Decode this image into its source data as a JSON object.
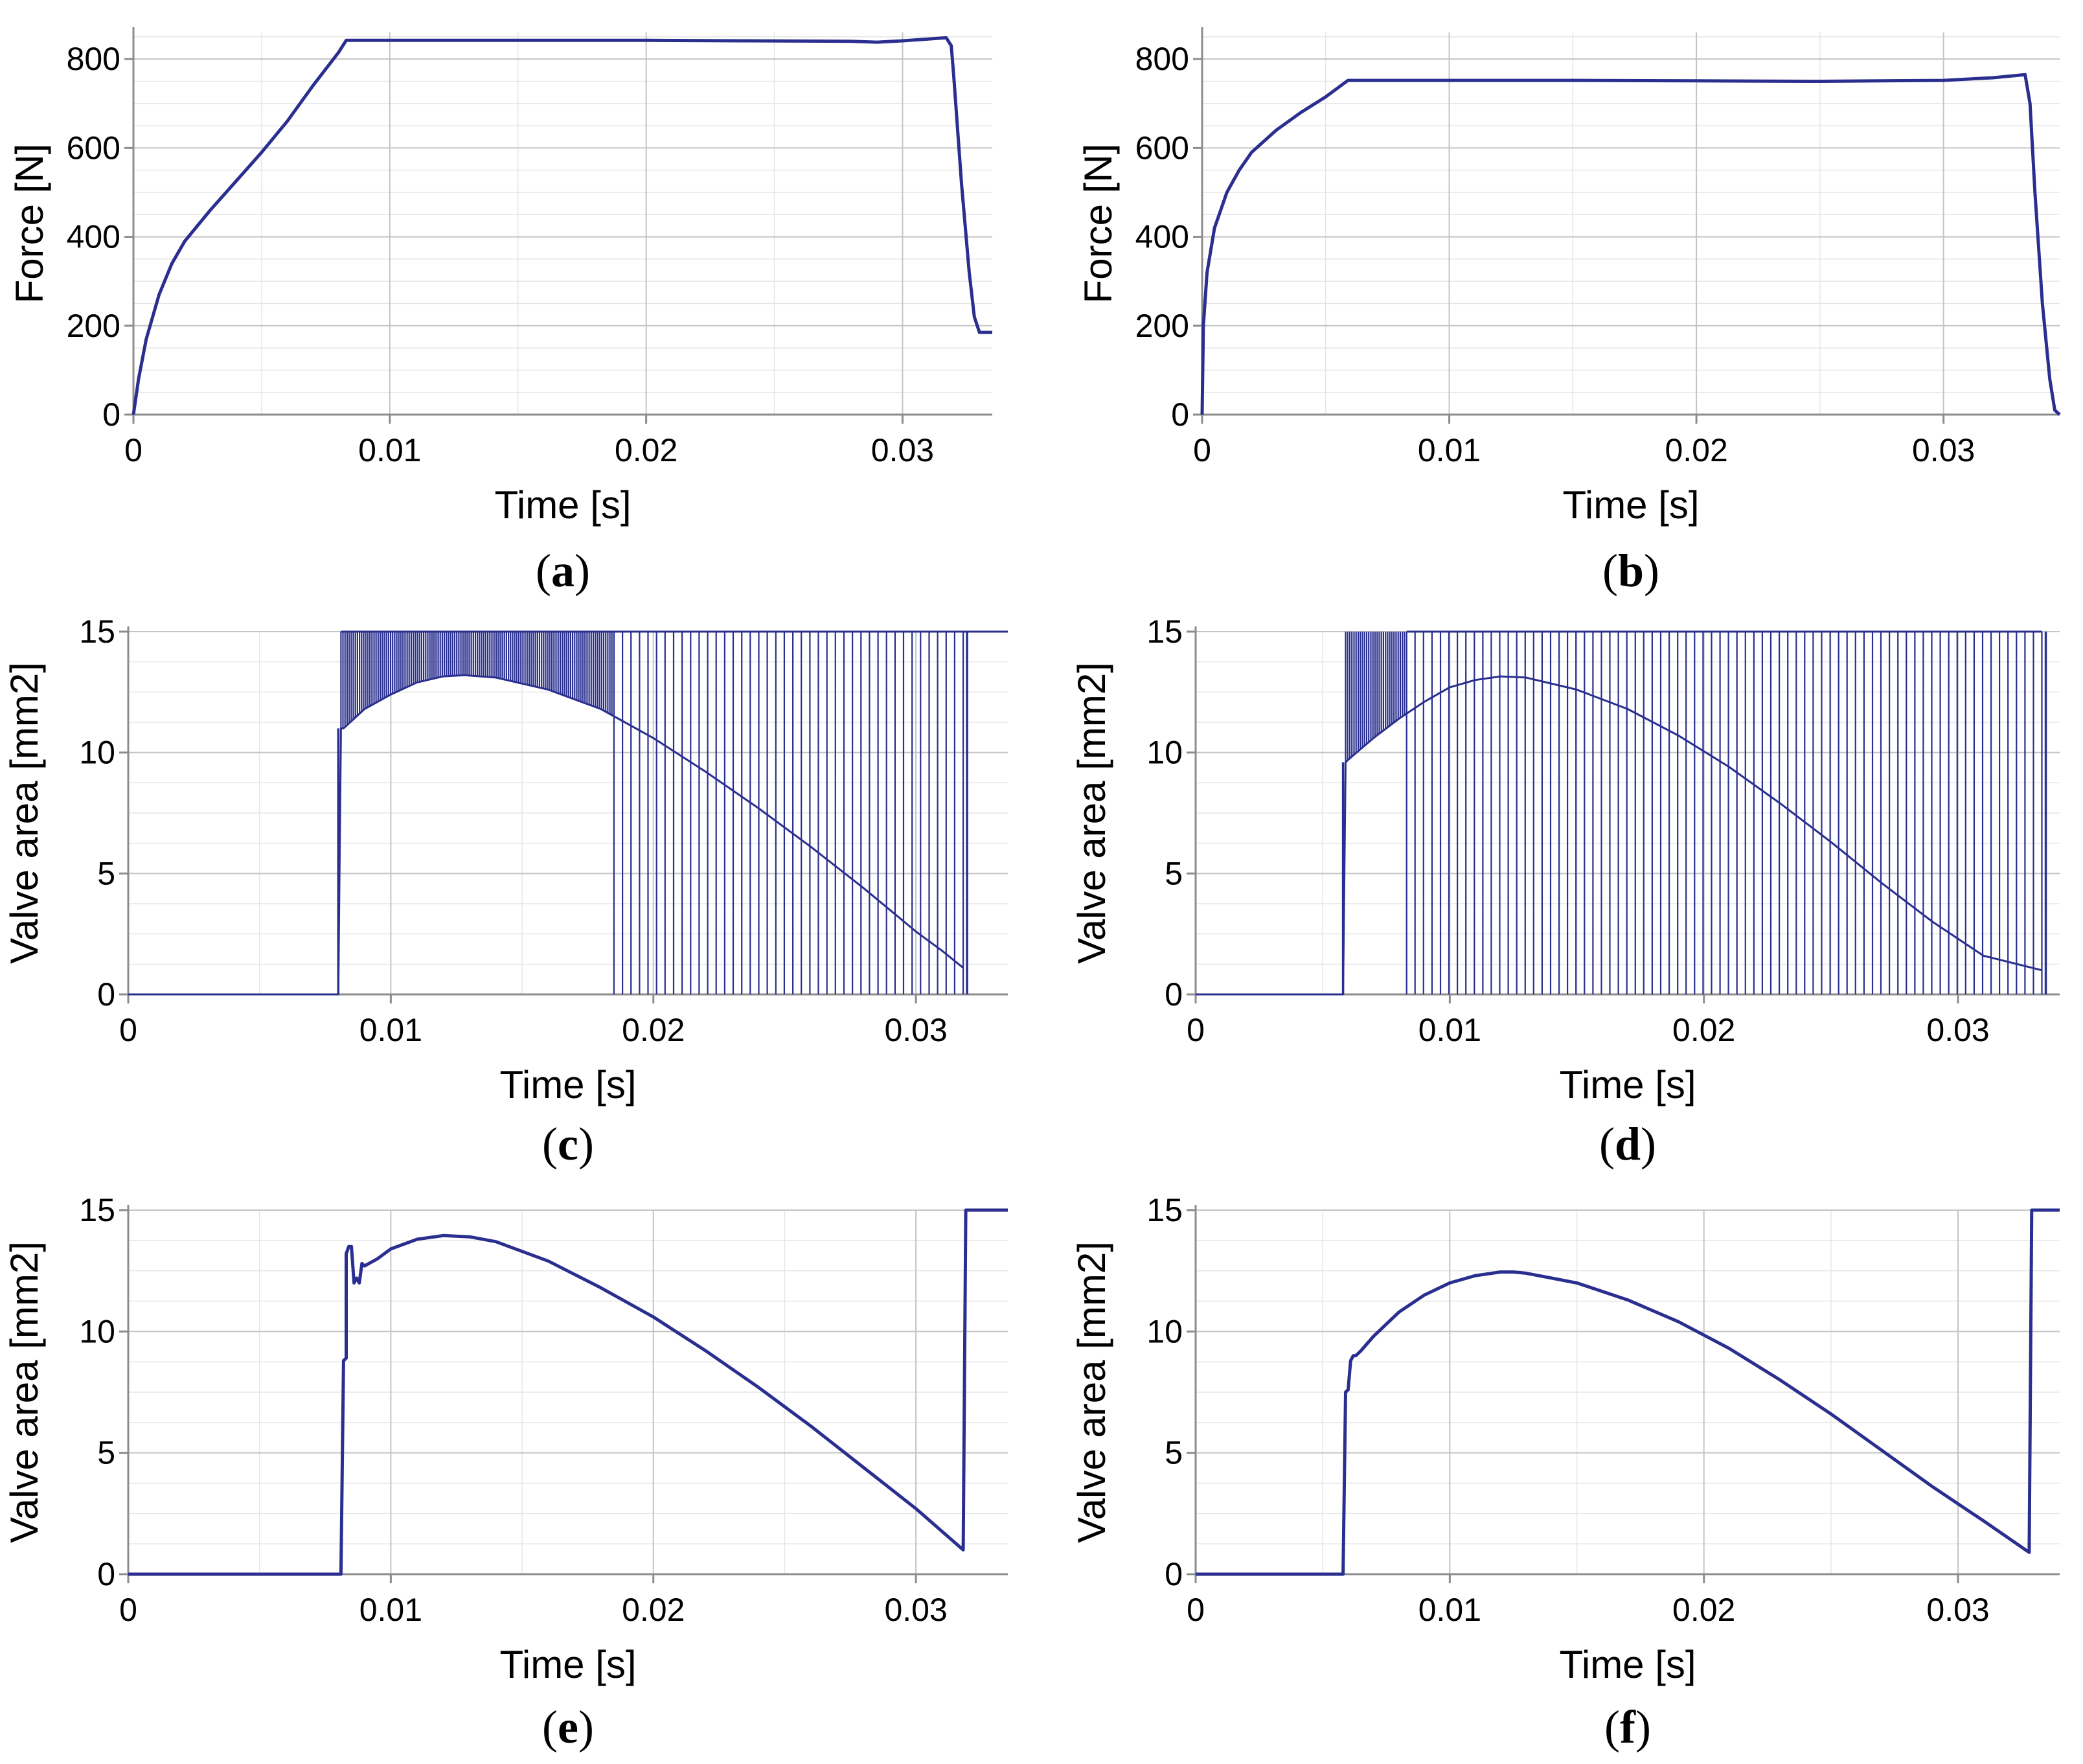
{
  "chart_data": [
    {
      "type": "line",
      "panel": "(a)",
      "panel_letter": "a",
      "xlabel": "Time [s]",
      "ylabel": "Force [N]",
      "xlim": [
        0,
        0.0335
      ],
      "ylim": [
        0,
        860
      ],
      "xticks": [
        0,
        0.01,
        0.02,
        0.03
      ],
      "xtick_labels": [
        "0",
        "0.01",
        "0.02",
        "0.03"
      ],
      "yticks": [
        0,
        200,
        400,
        600,
        800
      ],
      "ytick_labels": [
        "0",
        "200",
        "400",
        "600",
        "800"
      ],
      "grid": true,
      "series": [
        {
          "name": "Force",
          "color": "#2a2f8f",
          "x": [
            0,
            0.0002,
            0.0005,
            0.001,
            0.0015,
            0.002,
            0.003,
            0.004,
            0.005,
            0.006,
            0.007,
            0.008,
            0.0083,
            0.012,
            0.016,
            0.02,
            0.024,
            0.028,
            0.029,
            0.03,
            0.031,
            0.0317,
            0.0319,
            0.032,
            0.0323,
            0.0326,
            0.0328,
            0.033,
            0.0335
          ],
          "y": [
            0,
            80,
            170,
            270,
            340,
            390,
            460,
            525,
            590,
            660,
            740,
            815,
            842,
            842,
            842,
            842,
            841,
            840,
            838,
            841,
            845,
            848,
            830,
            760,
            520,
            320,
            220,
            185,
            185
          ]
        }
      ]
    },
    {
      "type": "line",
      "panel": "(b)",
      "panel_letter": "b",
      "xlabel": "Time [s]",
      "ylabel": "Force [N]",
      "xlim": [
        0,
        0.0347
      ],
      "ylim": [
        0,
        860
      ],
      "xticks": [
        0,
        0.01,
        0.02,
        0.03
      ],
      "xtick_labels": [
        "0",
        "0.01",
        "0.02",
        "0.03"
      ],
      "yticks": [
        0,
        200,
        400,
        600,
        800
      ],
      "ytick_labels": [
        "0",
        "200",
        "400",
        "600",
        "800"
      ],
      "grid": true,
      "series": [
        {
          "name": "Force",
          "color": "#2a2f8f",
          "x": [
            0,
            5e-05,
            0.0002,
            0.0005,
            0.001,
            0.0015,
            0.002,
            0.003,
            0.004,
            0.005,
            0.0059,
            0.01,
            0.015,
            0.02,
            0.025,
            0.03,
            0.032,
            0.0333,
            0.0335,
            0.0337,
            0.034,
            0.0343,
            0.0345,
            0.0347
          ],
          "y": [
            0,
            200,
            320,
            420,
            500,
            550,
            590,
            640,
            680,
            715,
            752,
            752,
            752,
            751,
            750,
            752,
            758,
            765,
            700,
            500,
            250,
            80,
            10,
            0
          ]
        }
      ]
    },
    {
      "type": "line",
      "panel": "(c)",
      "panel_letter": "c",
      "xlabel": "Time [s]",
      "ylabel": "Valve area [mm2]",
      "xlim": [
        0,
        0.0335
      ],
      "ylim": [
        0,
        15
      ],
      "xticks": [
        0,
        0.01,
        0.02,
        0.03
      ],
      "xtick_labels": [
        "0",
        "0.01",
        "0.02",
        "0.03"
      ],
      "yticks": [
        0,
        5,
        10,
        15
      ],
      "ytick_labels": [
        "0",
        "5",
        "10",
        "15"
      ],
      "grid": true,
      "series": [
        {
          "name": "Valve area (lower envelope)",
          "color": "#2a2f8f",
          "x": [
            0,
            0.008,
            0.0081,
            0.0082,
            0.0085,
            0.009,
            0.01,
            0.011,
            0.012,
            0.0128,
            0.014,
            0.016,
            0.018,
            0.02,
            0.022,
            0.024,
            0.026,
            0.028,
            0.03,
            0.031,
            0.0318
          ],
          "y": [
            0,
            0,
            11,
            11,
            11.3,
            11.8,
            12.4,
            12.9,
            13.15,
            13.2,
            13.1,
            12.6,
            11.8,
            10.6,
            9.2,
            7.7,
            6.1,
            4.4,
            2.6,
            1.8,
            1.1
          ]
        },
        {
          "name": "Valve area (upper envelope)",
          "color": "#2a2f8f",
          "x": [
            0.0081,
            0.0335
          ],
          "y": [
            15,
            15
          ]
        }
      ],
      "oscillation": {
        "dense_start": 0.0081,
        "dense_end": 0.0185,
        "sparse_start": 0.0185,
        "sparse_end": 0.0318,
        "final_value": 15
      }
    },
    {
      "type": "line",
      "panel": "(d)",
      "panel_letter": "d",
      "xlabel": "Time [s]",
      "ylabel": "Valve area [mm2]",
      "xlim": [
        0,
        0.034
      ],
      "ylim": [
        0,
        15
      ],
      "xticks": [
        0,
        0.01,
        0.02,
        0.03
      ],
      "xtick_labels": [
        "0",
        "0.01",
        "0.02",
        "0.03"
      ],
      "yticks": [
        0,
        5,
        10,
        15
      ],
      "ytick_labels": [
        "0",
        "5",
        "10",
        "15"
      ],
      "grid": true,
      "series": [
        {
          "name": "Valve area (lower envelope)",
          "color": "#2a2f8f",
          "x": [
            0,
            0.0058,
            0.0059,
            0.006,
            0.007,
            0.008,
            0.009,
            0.01,
            0.011,
            0.012,
            0.013,
            0.015,
            0.017,
            0.019,
            0.021,
            0.023,
            0.025,
            0.027,
            0.029,
            0.031,
            0.0333
          ],
          "y": [
            0,
            0,
            9.6,
            9.7,
            10.6,
            11.4,
            12.1,
            12.7,
            13.0,
            13.15,
            13.1,
            12.6,
            11.8,
            10.7,
            9.4,
            7.9,
            6.3,
            4.6,
            3.0,
            1.6,
            1.0
          ]
        },
        {
          "name": "Valve area (upper envelope)",
          "color": "#2a2f8f",
          "x": [
            0.0083,
            0.0333
          ],
          "y": [
            15,
            15
          ]
        }
      ],
      "oscillation": {
        "dense_start": 0.0059,
        "dense_end": 0.0083,
        "sparse_start": 0.0083,
        "sparse_end": 0.0333,
        "final_value": 15
      }
    },
    {
      "type": "line",
      "panel": "(e)",
      "panel_letter": "e",
      "xlabel": "Time [s]",
      "ylabel": "Valve area [mm2]",
      "xlim": [
        0,
        0.0335
      ],
      "ylim": [
        0,
        15
      ],
      "xticks": [
        0,
        0.01,
        0.02,
        0.03
      ],
      "xtick_labels": [
        "0",
        "0.01",
        "0.02",
        "0.03"
      ],
      "yticks": [
        0,
        5,
        10,
        15
      ],
      "ytick_labels": [
        "0",
        "5",
        "10",
        "15"
      ],
      "grid": true,
      "series": [
        {
          "name": "Valve area",
          "color": "#2a2f8f",
          "x": [
            0,
            0.0081,
            0.0082,
            0.0083,
            0.0083,
            0.0084,
            0.0085,
            0.0086,
            0.0087,
            0.0088,
            0.0089,
            0.009,
            0.0095,
            0.01,
            0.011,
            0.012,
            0.013,
            0.014,
            0.016,
            0.018,
            0.02,
            0.022,
            0.024,
            0.026,
            0.028,
            0.03,
            0.0318,
            0.0319,
            0.032,
            0.0335
          ],
          "y": [
            0,
            0,
            8.8,
            8.9,
            13.2,
            13.5,
            13.5,
            12.0,
            12.2,
            12.0,
            12.8,
            12.7,
            13.0,
            13.4,
            13.8,
            13.95,
            13.9,
            13.7,
            12.9,
            11.8,
            10.6,
            9.2,
            7.7,
            6.1,
            4.4,
            2.7,
            1.0,
            15,
            15,
            15
          ]
        }
      ]
    },
    {
      "type": "line",
      "panel": "(f)",
      "panel_letter": "f",
      "xlabel": "Time [s]",
      "ylabel": "Valve area [mm2]",
      "xlim": [
        0,
        0.034
      ],
      "ylim": [
        0,
        15
      ],
      "xticks": [
        0,
        0.01,
        0.02,
        0.03
      ],
      "xtick_labels": [
        "0",
        "0.01",
        "0.02",
        "0.03"
      ],
      "yticks": [
        0,
        5,
        10,
        15
      ],
      "ytick_labels": [
        "0",
        "5",
        "10",
        "15"
      ],
      "grid": true,
      "series": [
        {
          "name": "Valve area",
          "color": "#2a2f8f",
          "x": [
            0,
            0.0058,
            0.0059,
            0.006,
            0.0061,
            0.0062,
            0.0063,
            0.0065,
            0.007,
            0.008,
            0.009,
            0.01,
            0.011,
            0.012,
            0.0125,
            0.013,
            0.015,
            0.017,
            0.019,
            0.021,
            0.023,
            0.025,
            0.027,
            0.029,
            0.031,
            0.0328,
            0.0329,
            0.034
          ],
          "y": [
            0,
            0,
            7.5,
            7.6,
            8.8,
            9.0,
            9.0,
            9.2,
            9.8,
            10.8,
            11.5,
            12.0,
            12.3,
            12.45,
            12.45,
            12.4,
            12.0,
            11.3,
            10.4,
            9.3,
            8.0,
            6.6,
            5.1,
            3.6,
            2.2,
            0.9,
            15,
            15
          ]
        }
      ]
    }
  ]
}
